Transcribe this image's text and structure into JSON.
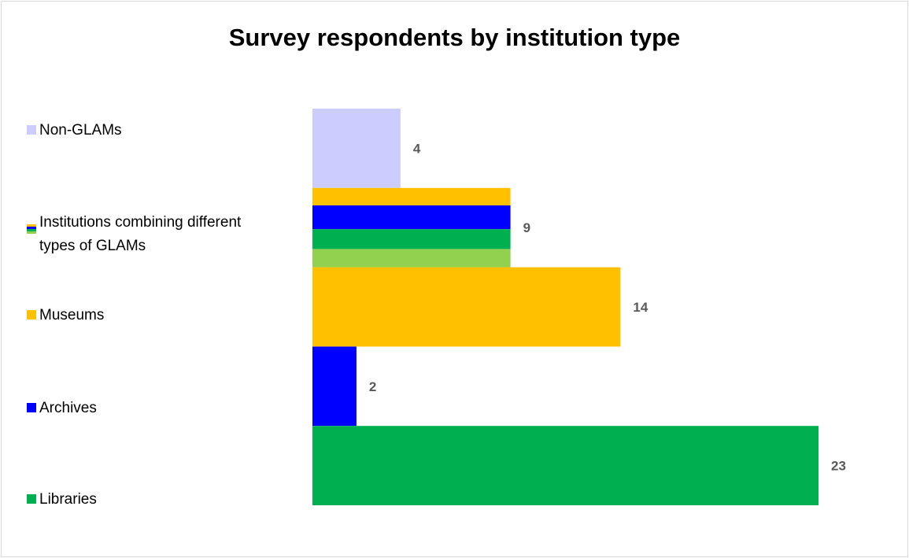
{
  "chart_data": {
    "type": "bar",
    "orientation": "horizontal",
    "title": "Survey respondents by institution type",
    "xlabel": "",
    "ylabel": "",
    "xlim": [
      0,
      23
    ],
    "grid": false,
    "legend_position": "left",
    "categories": [
      "Non-GLAMs",
      "Institutions combining different types of GLAMs",
      "Museums",
      "Archives",
      "Libraries"
    ],
    "values": [
      4,
      9,
      14,
      2,
      23
    ],
    "colors": [
      "#ccccff",
      [
        "#ffc000",
        "#0000ff",
        "#00b050",
        "#92d050"
      ],
      "#ffc000",
      "#0000ff",
      "#00b050"
    ],
    "value_labels": [
      "4",
      "9",
      "14",
      "2",
      "23"
    ]
  },
  "legend": [
    {
      "label": "Non-GLAMs",
      "color": "#ccccff"
    },
    {
      "label_line1": "Institutions combining different",
      "label_line2": "types of GLAMs",
      "colors": [
        "#ffc000",
        "#0000ff",
        "#00b050",
        "#92d050"
      ]
    },
    {
      "label": "Museums",
      "color": "#ffc000"
    },
    {
      "label": "Archives",
      "color": "#0000ff"
    },
    {
      "label": "Libraries",
      "color": "#00b050"
    }
  ]
}
